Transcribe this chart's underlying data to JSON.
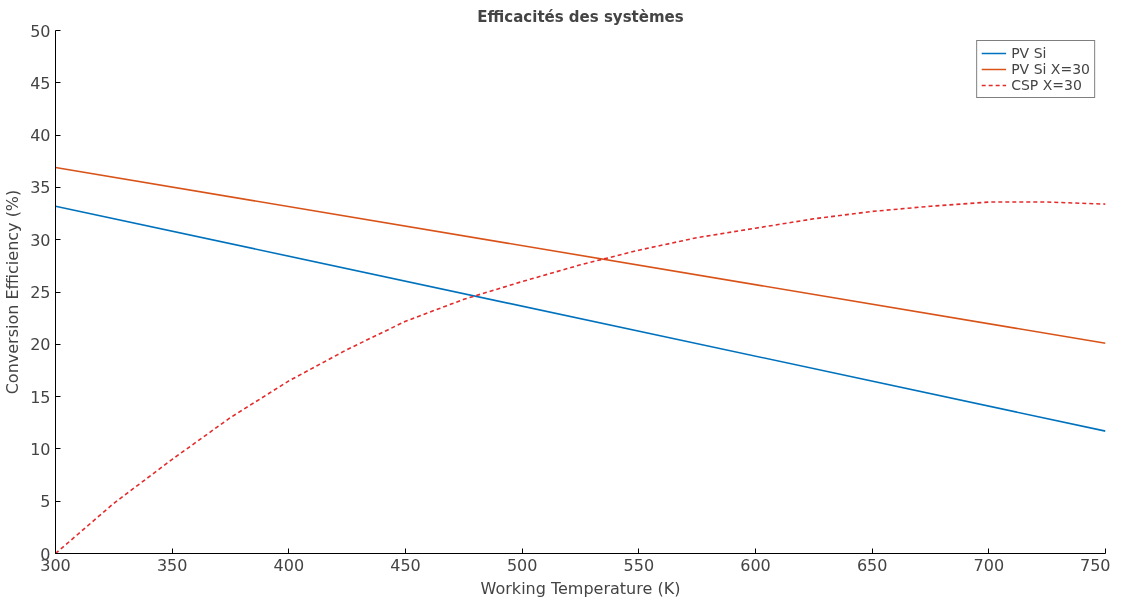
{
  "chart_data": {
    "type": "line",
    "title": "Efficacités des systèmes",
    "xlabel": "Working Temperature (K)",
    "ylabel": "Conversion Efficiency (%)",
    "xlim": [
      300,
      750
    ],
    "ylim": [
      0,
      50
    ],
    "xticks": [
      300,
      350,
      400,
      450,
      500,
      550,
      600,
      650,
      700,
      750
    ],
    "yticks": [
      0,
      5,
      10,
      15,
      20,
      25,
      30,
      35,
      40,
      45,
      50
    ],
    "grid": false,
    "legend": "top right",
    "marker": "none",
    "series": [
      {
        "name": "PV Si",
        "color": "#0072bd",
        "x": [
          300,
          750
        ],
        "values": [
          33.2,
          11.7
        ],
        "line_style": "solid"
      },
      {
        "name": "PV Si X=30",
        "color": "#d95319",
        "x": [
          300,
          750
        ],
        "values": [
          36.9,
          20.1
        ],
        "line_style": "solid"
      },
      {
        "name": "CSP X=30",
        "color": "#e32b2b",
        "x": [
          300,
          325,
          350,
          375,
          400,
          425,
          450,
          475,
          500,
          525,
          550,
          575,
          600,
          625,
          650,
          675,
          700,
          725,
          750
        ],
        "values": [
          0,
          4.8,
          9.0,
          13.0,
          16.5,
          19.5,
          22.2,
          24.3,
          26.0,
          27.6,
          29.0,
          30.2,
          31.1,
          32.0,
          32.7,
          33.2,
          33.6,
          33.6,
          33.4
        ],
        "line_style": "dashed"
      }
    ]
  }
}
